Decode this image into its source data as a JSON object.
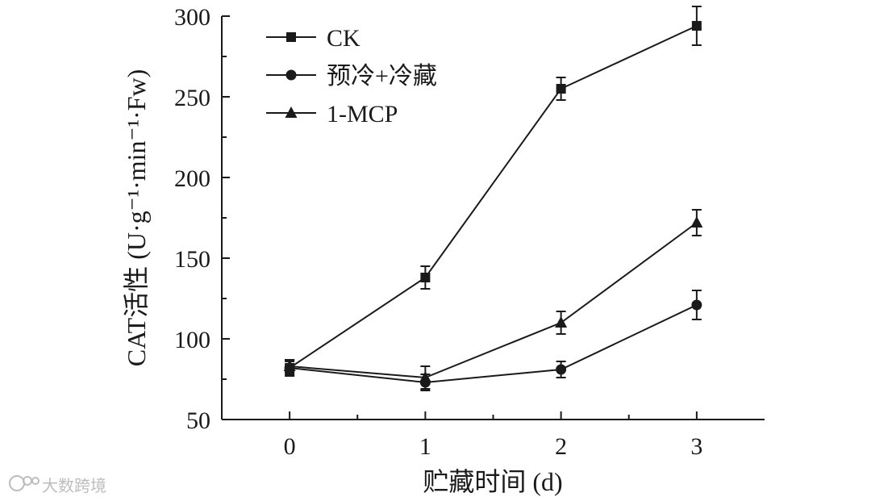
{
  "chart_data": {
    "type": "line",
    "xlabel": "贮藏时间 (d)",
    "ylabel": "CAT活性 (U·g⁻¹·min⁻¹·Fw)",
    "x": [
      0,
      1,
      2,
      3
    ],
    "x_ticks": [
      "0",
      "1",
      "2",
      "3"
    ],
    "xlim": [
      -0.5,
      3.5
    ],
    "ylim": [
      50,
      300
    ],
    "y_ticks": [
      "50",
      "100",
      "150",
      "200",
      "250",
      "300"
    ],
    "series": [
      {
        "name": "CK",
        "marker": "square",
        "values": [
          82,
          138,
          255,
          294
        ],
        "errors": [
          5,
          7,
          7,
          12
        ]
      },
      {
        "name": "预冷+冷藏",
        "marker": "circle",
        "values": [
          82,
          73,
          81,
          121
        ],
        "errors": [
          4,
          5,
          5,
          9
        ]
      },
      {
        "name": "1-MCP",
        "marker": "triangle",
        "values": [
          83,
          76,
          110,
          172
        ],
        "errors": [
          4,
          7,
          7,
          8
        ]
      }
    ],
    "legend_position": "top-left",
    "line_color": "#1a1a1a"
  },
  "watermark": {
    "text": "大数跨境",
    "icon": "brand-logo-icon"
  }
}
